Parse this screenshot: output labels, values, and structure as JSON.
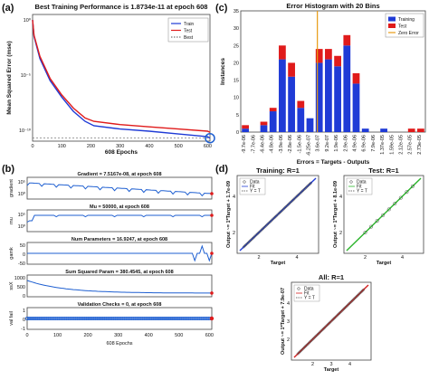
{
  "panels": {
    "a": "(a)",
    "b": "(b)",
    "c": "(c)",
    "d": "(d)"
  },
  "colors": {
    "train": "#1f3bd6",
    "test": "#e01b1b",
    "zero": "#e89b13",
    "fit": "#d42020",
    "val": "#2bb52b",
    "data": "#333333",
    "mark": "#1e5fd1"
  },
  "chart_data": [
    {
      "id": "a",
      "type": "line",
      "title": "Best Training Performance is 1.8734e-11 at epoch 608",
      "xlabel": "608 Epochs",
      "ylabel": "Mean Squared Error  (mse)",
      "xlim": [
        0,
        608
      ],
      "ylim_log": [
        -11,
        0.5
      ],
      "yscale": "log",
      "xticks": [
        0,
        100,
        200,
        300,
        400,
        500,
        600
      ],
      "yticks": [
        {
          "v": -10,
          "label": "10⁻¹⁰"
        },
        {
          "v": -5,
          "label": "10⁻⁵"
        },
        {
          "v": 0,
          "label": "10⁰"
        }
      ],
      "legend": [
        "Train",
        "Test",
        "Best"
      ],
      "legend_placement": "top-right",
      "best": {
        "x": 608,
        "y": -10.73
      },
      "series": [
        {
          "name": "Train",
          "log10_values": [
            [
              0,
              0
            ],
            [
              5,
              -1.5
            ],
            [
              25,
              -3.5
            ],
            [
              60,
              -5.5
            ],
            [
              100,
              -7
            ],
            [
              140,
              -8.3
            ],
            [
              180,
              -9.2
            ],
            [
              210,
              -9.6
            ],
            [
              300,
              -9.9
            ],
            [
              400,
              -10.1
            ],
            [
              500,
              -10.35
            ],
            [
              600,
              -10.6
            ],
            [
              608,
              -10.73
            ]
          ]
        },
        {
          "name": "Test",
          "log10_values": [
            [
              0,
              0
            ],
            [
              5,
              -1.4
            ],
            [
              25,
              -3.3
            ],
            [
              60,
              -5.3
            ],
            [
              100,
              -6.8
            ],
            [
              140,
              -8.0
            ],
            [
              180,
              -8.9
            ],
            [
              210,
              -9.2
            ],
            [
              300,
              -9.5
            ],
            [
              400,
              -9.7
            ],
            [
              500,
              -9.9
            ],
            [
              600,
              -10.1
            ],
            [
              608,
              -10.2
            ]
          ]
        }
      ]
    },
    {
      "id": "c",
      "type": "bar",
      "title": "Error Histogram with 20 Bins",
      "xlabel": "Errors = Targets - Outputs",
      "ylabel": "Instances",
      "ylim": [
        0,
        35
      ],
      "yticks": [
        0,
        5,
        10,
        15,
        20,
        25,
        30,
        35
      ],
      "categories": [
        "-9.7e-06",
        "-7.7e-06",
        "-6.4e-06",
        "-4.8e-06",
        "-3.9e-06",
        "-2.8e-06",
        "-1.5e-06",
        "-6.25e-07",
        "3.6e-07",
        "9.2e-07",
        "1.9e-06",
        "2.9e-06",
        "4.9e-06",
        "6.9e-06",
        "7.9e-06",
        "1.37e-05",
        "1.59e-05",
        "2.12e-05",
        "2.57e-05",
        "2.73e-05"
      ],
      "legend": [
        "Training",
        "Test",
        "Zero Error"
      ],
      "legend_placement": "top-right",
      "zero_error_category_index": 8,
      "series": [
        {
          "name": "Training",
          "values": [
            1,
            0,
            2,
            6,
            21,
            16,
            7,
            4,
            20,
            21,
            19,
            25,
            14,
            1,
            0,
            1,
            0,
            0,
            0,
            0
          ]
        },
        {
          "name": "Test",
          "values": [
            1,
            0,
            1,
            1,
            4,
            4,
            2,
            0,
            4,
            3,
            3,
            3,
            3,
            0,
            0,
            0,
            0,
            0,
            1,
            1
          ]
        }
      ]
    },
    {
      "id": "b",
      "type": "line",
      "xlabel": "608 Epochs",
      "xlim": [
        0,
        608
      ],
      "xticks": [
        0,
        100,
        200,
        300,
        400,
        500,
        600
      ],
      "subplots": [
        {
          "title": "Gradient = 7.5167e-08, at epoch 608",
          "ylabel": "gradient",
          "yticks": [
            "10⁵",
            "10⁰"
          ]
        },
        {
          "title": "Mu = 50000, at epoch 608",
          "ylabel": "mu",
          "yticks": [
            "10⁵",
            "10⁰"
          ]
        },
        {
          "title": "Num Parameters = 16.9247, at epoch 608",
          "ylabel": "gamk",
          "yticks": [
            "50",
            "0",
            "-50"
          ]
        },
        {
          "title": "Sum Squared Param = 380.4545, at epoch 608",
          "ylabel": "ssX",
          "yticks": [
            "1000",
            "500",
            "0"
          ]
        },
        {
          "title": "Validation Checks = 0, at epoch 608",
          "ylabel": "val fail",
          "yticks": [
            "1",
            "0",
            "-1"
          ]
        }
      ]
    },
    {
      "id": "d",
      "type": "scatter",
      "subplots": [
        {
          "title": "Training: R=1",
          "ylabel": "Output ~= 1*Target + 1.7e-09",
          "xlabel": "Target",
          "legend": [
            "Data",
            "Fit",
            "Y = T"
          ],
          "line_color_key": "train",
          "xticks": [
            2,
            4
          ],
          "yticks": [
            2,
            4
          ]
        },
        {
          "title": "Test: R=1",
          "ylabel": "Output ~= 1*Target + 8.1e-09",
          "xlabel": "Target",
          "legend": [
            "Data",
            "Fit",
            "Y = T"
          ],
          "line_color_key": "val",
          "xticks": [
            2,
            4
          ],
          "yticks": [
            2,
            4
          ]
        },
        {
          "title": "All: R=1",
          "ylabel": "Output ~= 1*Target + 7.9e-07",
          "xlabel": "Target",
          "legend": [
            "Data",
            "Fit",
            "Y = T"
          ],
          "line_color_key": "fit",
          "xticks": [
            2,
            3,
            4
          ],
          "yticks": [
            2,
            3,
            4
          ]
        }
      ]
    }
  ]
}
